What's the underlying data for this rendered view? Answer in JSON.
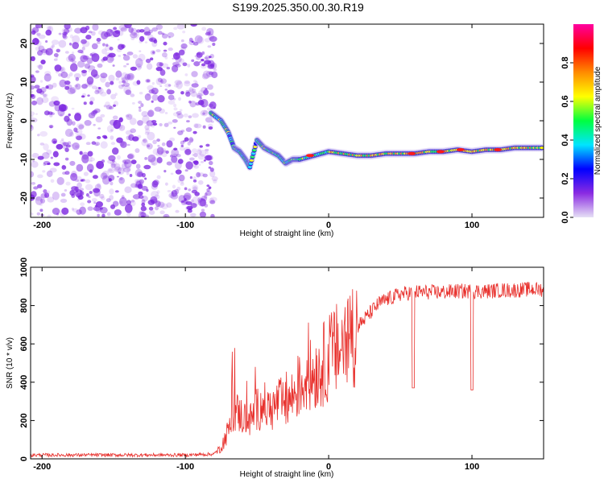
{
  "title": "S199.2025.350.00.30.R19",
  "colors": {
    "snr_line": "#e8302c",
    "blob": "#7a22e0",
    "axis": "#000000"
  },
  "chart_data": [
    {
      "type": "heatmap",
      "name": "spectrogram",
      "xlabel": "Height of straight line (km)",
      "ylabel": "Frequency (Hz)",
      "xlim": [
        -208,
        150
      ],
      "ylim": [
        -25,
        25
      ],
      "xticks": [
        {
          "value": -200,
          "label": "-200"
        },
        {
          "value": -100,
          "label": "-100"
        },
        {
          "value": 0,
          "label": "0"
        },
        {
          "value": 100,
          "label": "100"
        }
      ],
      "yticks": [
        {
          "value": 20,
          "label": "20"
        },
        {
          "value": 10,
          "label": "10"
        },
        {
          "value": 0,
          "label": "0"
        },
        {
          "value": -10,
          "label": "-10"
        },
        {
          "value": -20,
          "label": "-20"
        }
      ],
      "noise_region_x": [
        -208,
        -83
      ],
      "signal_track": [
        [
          -82,
          2
        ],
        [
          -75,
          0
        ],
        [
          -70,
          -3
        ],
        [
          -66,
          -7
        ],
        [
          -62,
          -8
        ],
        [
          -58,
          -10
        ],
        [
          -55,
          -12
        ],
        [
          -50,
          -5
        ],
        [
          -45,
          -7
        ],
        [
          -40,
          -8
        ],
        [
          -35,
          -9
        ],
        [
          -30,
          -11
        ],
        [
          -25,
          -10
        ],
        [
          -20,
          -10
        ],
        [
          -10,
          -9
        ],
        [
          0,
          -8
        ],
        [
          10,
          -8.5
        ],
        [
          20,
          -9
        ],
        [
          30,
          -9
        ],
        [
          40,
          -8.5
        ],
        [
          50,
          -8.5
        ],
        [
          60,
          -8.5
        ],
        [
          70,
          -8
        ],
        [
          80,
          -8
        ],
        [
          90,
          -7.5
        ],
        [
          100,
          -8
        ],
        [
          110,
          -7.5
        ],
        [
          120,
          -7.5
        ],
        [
          130,
          -7
        ],
        [
          140,
          -7
        ],
        [
          150,
          -7
        ]
      ],
      "colorbar": {
        "label": "Normalized spectral amplitude",
        "range": [
          0,
          1
        ],
        "ticks": [
          {
            "value": 0.0,
            "label": "0.0"
          },
          {
            "value": 0.2,
            "label": "0.2"
          },
          {
            "value": 0.4,
            "label": "0.4"
          },
          {
            "value": 0.6,
            "label": "0.6"
          },
          {
            "value": 0.8,
            "label": "0.8"
          }
        ],
        "stops": [
          "#e6e0f5",
          "#8a2be2",
          "#0000ff",
          "#00e5ff",
          "#00ff40",
          "#ffff00",
          "#ff8c00",
          "#ff0000",
          "#ff00a0"
        ]
      }
    },
    {
      "type": "line",
      "name": "snr",
      "xlabel": "Height of straight line (km)",
      "ylabel": "SNR (10 * v/v)",
      "xlim": [
        -208,
        150
      ],
      "ylim": [
        0,
        1000
      ],
      "xticks": [
        {
          "value": -200,
          "label": "-200"
        },
        {
          "value": -100,
          "label": "-100"
        },
        {
          "value": 0,
          "label": "0"
        },
        {
          "value": 100,
          "label": "100"
        }
      ],
      "yticks": [
        {
          "value": 0,
          "label": "0"
        },
        {
          "value": 200,
          "label": "200"
        },
        {
          "value": 400,
          "label": "400"
        },
        {
          "value": 600,
          "label": "600"
        },
        {
          "value": 800,
          "label": "800"
        },
        {
          "value": 1000,
          "label": "1000"
        }
      ],
      "envelope": [
        [
          -208,
          20
        ],
        [
          -150,
          20
        ],
        [
          -100,
          20
        ],
        [
          -80,
          25
        ],
        [
          -75,
          60
        ],
        [
          -70,
          150
        ],
        [
          -65,
          250
        ],
        [
          -60,
          220
        ],
        [
          -55,
          200
        ],
        [
          -50,
          260
        ],
        [
          -45,
          280
        ],
        [
          -40,
          250
        ],
        [
          -35,
          300
        ],
        [
          -30,
          280
        ],
        [
          -25,
          330
        ],
        [
          -20,
          380
        ],
        [
          -15,
          420
        ],
        [
          -10,
          450
        ],
        [
          -5,
          480
        ],
        [
          0,
          530
        ],
        [
          5,
          560
        ],
        [
          10,
          590
        ],
        [
          15,
          640
        ],
        [
          20,
          690
        ],
        [
          25,
          730
        ],
        [
          30,
          770
        ],
        [
          35,
          810
        ],
        [
          40,
          830
        ],
        [
          45,
          845
        ],
        [
          50,
          860
        ],
        [
          60,
          870
        ],
        [
          70,
          870
        ],
        [
          80,
          870
        ],
        [
          90,
          875
        ],
        [
          100,
          875
        ],
        [
          110,
          875
        ],
        [
          120,
          880
        ],
        [
          130,
          880
        ],
        [
          140,
          885
        ],
        [
          150,
          885
        ]
      ],
      "dips": [
        {
          "x": 59,
          "y": 370
        },
        {
          "x": 100,
          "y": 360
        }
      ]
    }
  ]
}
